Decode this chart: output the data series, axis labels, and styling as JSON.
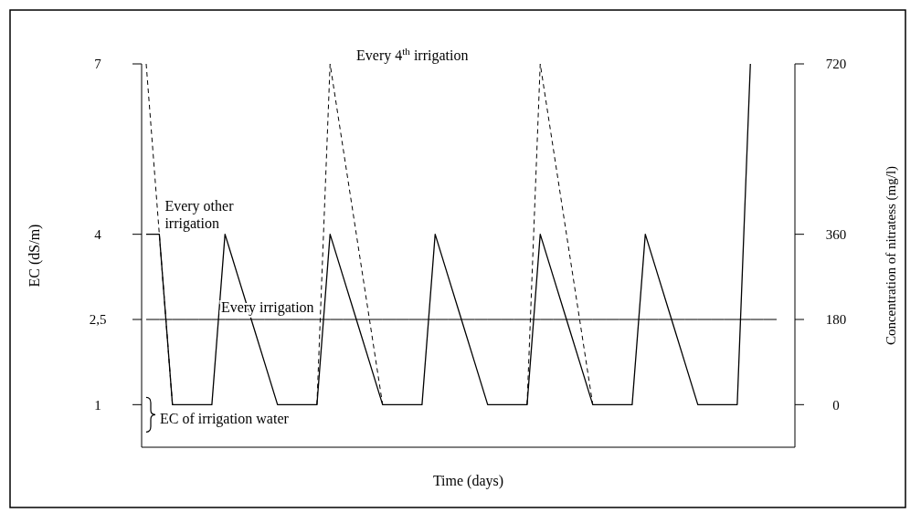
{
  "chart_data": {
    "type": "line",
    "xlabel": "Time  (days)",
    "ylabel": "EC (dS/m)",
    "y2label": "Concentration of nitratess (mg/l)",
    "categories": [
      null,
      null,
      null,
      null,
      null,
      null,
      null,
      null,
      null,
      null,
      null,
      null,
      null,
      null,
      null,
      null,
      null,
      null,
      null,
      null,
      null,
      null,
      null,
      null,
      null,
      null,
      null,
      null,
      null,
      null,
      null,
      null,
      null,
      null,
      null,
      null,
      null,
      null,
      null,
      null,
      null,
      null,
      null,
      null,
      null,
      null,
      null,
      null,
      null
    ],
    "ylim": [
      0.25,
      7
    ],
    "yticks": [
      1,
      {
        "value": 2.5,
        "label": "2,5"
      },
      4,
      7
    ],
    "y2lim": [
      -90,
      720
    ],
    "y2ticks": [
      0,
      180,
      360,
      720
    ],
    "grid": false,
    "tick_labels": "y",
    "marker": "none",
    "series": [
      {
        "name": "Every irrigation",
        "color": "#000000",
        "line_style": "solid",
        "values": [
          2.5,
          2.5,
          2.5,
          2.5,
          2.5,
          2.5,
          2.5,
          2.5,
          2.5,
          2.5,
          2.5,
          2.5,
          2.5,
          2.5,
          2.5,
          2.5,
          2.5,
          2.5,
          2.5,
          2.5,
          2.5,
          2.5,
          2.5,
          2.5,
          2.5,
          2.5,
          2.5,
          2.5,
          2.5,
          2.5,
          2.5,
          2.5,
          2.5,
          2.5,
          2.5,
          2.5,
          2.5,
          2.5,
          2.5,
          2.5,
          2.5,
          2.5,
          2.5,
          2.5,
          2.5,
          2.5,
          2.5,
          2.5,
          2.5
        ]
      },
      {
        "name": "Every other irrigation",
        "color": "#000000",
        "line_style": "solid",
        "values": [
          4,
          4,
          1,
          1,
          1,
          1,
          4,
          3.25,
          2.5,
          1.75,
          1,
          1,
          1,
          1,
          4,
          3.25,
          2.5,
          1.75,
          1,
          1,
          1,
          1,
          4,
          3.25,
          2.5,
          1.75,
          1,
          1,
          1,
          1,
          4,
          3.25,
          2.5,
          1.75,
          1,
          1,
          1,
          1,
          4,
          3.25,
          2.5,
          1.75,
          1,
          1,
          1,
          1,
          7,
          null,
          null
        ]
      },
      {
        "name": "Every 4$^{th}$ irrigation",
        "color": "#000000",
        "line_style": "dashed",
        "values": [
          7,
          4,
          1,
          null,
          null,
          null,
          null,
          null,
          null,
          null,
          null,
          null,
          null,
          1,
          7,
          5.5,
          4,
          2.5,
          1,
          null,
          null,
          null,
          null,
          null,
          null,
          null,
          null,
          null,
          null,
          1,
          7,
          5.5,
          4,
          2.5,
          1,
          null,
          null,
          null,
          null,
          null,
          null,
          null,
          null,
          null,
          null,
          null,
          null,
          null,
          null
        ]
      }
    ],
    "annotations": [
      "EC of irrigation water"
    ]
  }
}
